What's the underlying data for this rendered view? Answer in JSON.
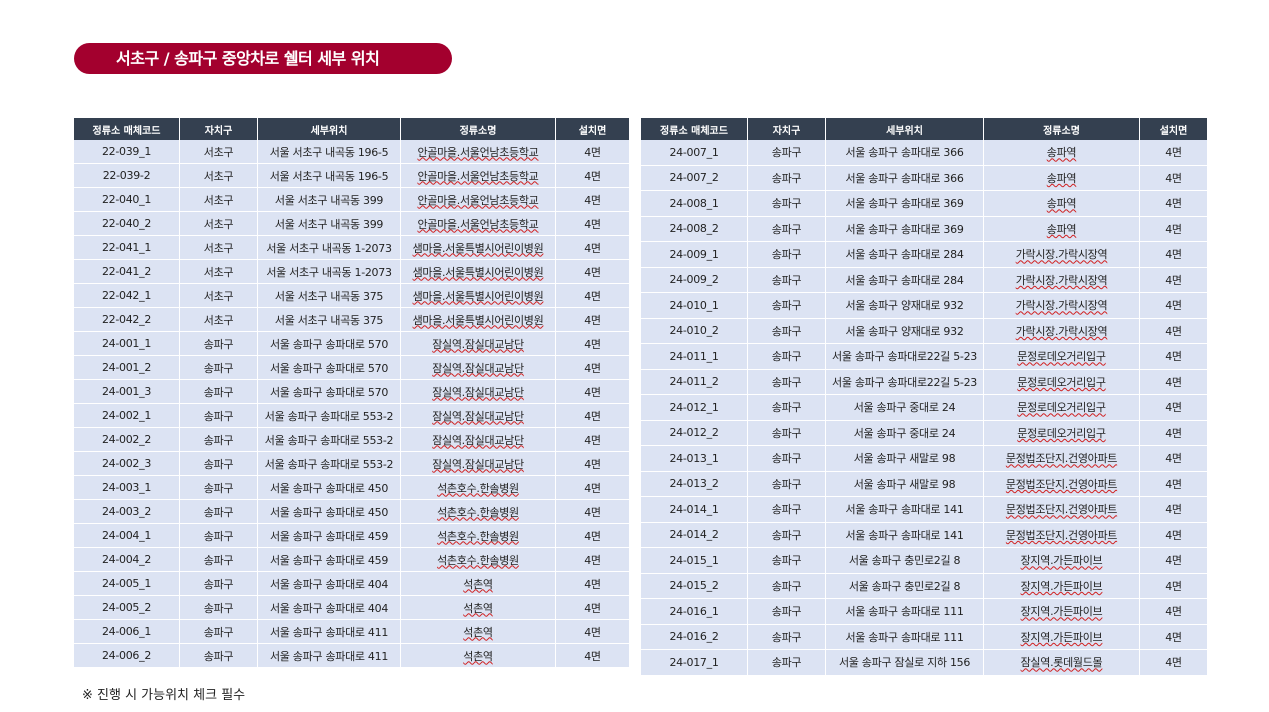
{
  "title": "서초구 / 송파구 중앙차로 쉘터 세부 위치",
  "headers": [
    "정류소 매체코드",
    "자치구",
    "세부위치",
    "정류소명",
    "설치면"
  ],
  "left_rows": [
    [
      "22-039_1",
      "서초구",
      "서울 서초구 내곡동 196-5",
      "안골마을.서울언남초등학교",
      "4면"
    ],
    [
      "22-039-2",
      "서초구",
      "서울 서초구 내곡동 196-5",
      "안골마을.서울언남초등학교",
      "4면"
    ],
    [
      "22-040_1",
      "서초구",
      "서울 서초구 내곡동 399",
      "안골마을.서울언남초등학교",
      "4면"
    ],
    [
      "22-040_2",
      "서초구",
      "서울 서초구 내곡동 399",
      "안골마을.서울언남초등학교",
      "4면"
    ],
    [
      "22-041_1",
      "서초구",
      "서울 서초구 내곡동 1-2073",
      "샘마을.서울특별시어린이병원",
      "4면"
    ],
    [
      "22-041_2",
      "서초구",
      "서울 서초구 내곡동 1-2073",
      "샘마을.서울특별시어린이병원",
      "4면"
    ],
    [
      "22-042_1",
      "서초구",
      "서울 서초구 내곡동 375",
      "샘마을.서울특별시어린이병원",
      "4면"
    ],
    [
      "22-042_2",
      "서초구",
      "서울 서초구 내곡동 375",
      "샘마을.서울특별시어린이병원",
      "4면"
    ],
    [
      "24-001_1",
      "송파구",
      "서울 송파구 송파대로 570",
      "잠실역.잠실대교남단",
      "4면"
    ],
    [
      "24-001_2",
      "송파구",
      "서울 송파구 송파대로 570",
      "잠실역.잠실대교남단",
      "4면"
    ],
    [
      "24-001_3",
      "송파구",
      "서울 송파구 송파대로 570",
      "잠실역.잠실대교남단",
      "4면"
    ],
    [
      "24-002_1",
      "송파구",
      "서울 송파구 송파대로 553-2",
      "잠실역.잠실대교남단",
      "4면"
    ],
    [
      "24-002_2",
      "송파구",
      "서울 송파구 송파대로 553-2",
      "잠실역.잠실대교남단",
      "4면"
    ],
    [
      "24-002_3",
      "송파구",
      "서울 송파구 송파대로 553-2",
      "잠실역.잠실대교남단",
      "4면"
    ],
    [
      "24-003_1",
      "송파구",
      "서울 송파구 송파대로 450",
      "석촌호수.한솔병원",
      "4면"
    ],
    [
      "24-003_2",
      "송파구",
      "서울 송파구 송파대로 450",
      "석촌호수.한솔병원",
      "4면"
    ],
    [
      "24-004_1",
      "송파구",
      "서울 송파구 송파대로 459",
      "석촌호수.한솔병원",
      "4면"
    ],
    [
      "24-004_2",
      "송파구",
      "서울 송파구 송파대로 459",
      "석촌호수.한솔병원",
      "4면"
    ],
    [
      "24-005_1",
      "송파구",
      "서울 송파구 송파대로 404",
      "석촌역",
      "4면"
    ],
    [
      "24-005_2",
      "송파구",
      "서울 송파구 송파대로 404",
      "석촌역",
      "4면"
    ],
    [
      "24-006_1",
      "송파구",
      "서울 송파구 송파대로 411",
      "석촌역",
      "4면"
    ],
    [
      "24-006_2",
      "송파구",
      "서울 송파구 송파대로 411",
      "석촌역",
      "4면"
    ]
  ],
  "right_rows": [
    [
      "24-007_1",
      "송파구",
      "서울 송파구 송파대로 366",
      "송파역",
      "4면"
    ],
    [
      "24-007_2",
      "송파구",
      "서울 송파구 송파대로 366",
      "송파역",
      "4면"
    ],
    [
      "24-008_1",
      "송파구",
      "서울 송파구 송파대로 369",
      "송파역",
      "4면"
    ],
    [
      "24-008_2",
      "송파구",
      "서울 송파구 송파대로 369",
      "송파역",
      "4면"
    ],
    [
      "24-009_1",
      "송파구",
      "서울 송파구 송파대로 284",
      "가락시장.가락시장역",
      "4면"
    ],
    [
      "24-009_2",
      "송파구",
      "서울 송파구 송파대로 284",
      "가락시장.가락시장역",
      "4면"
    ],
    [
      "24-010_1",
      "송파구",
      "서울 송파구 양재대로 932",
      "가락시장.가락시장역",
      "4면"
    ],
    [
      "24-010_2",
      "송파구",
      "서울 송파구 양재대로 932",
      "가락시장.가락시장역",
      "4면"
    ],
    [
      "24-011_1",
      "송파구",
      "서울 송파구 송파대로22길 5-23",
      "문정로데오거리입구",
      "4면"
    ],
    [
      "24-011_2",
      "송파구",
      "서울 송파구 송파대로22길 5-23",
      "문정로데오거리입구",
      "4면"
    ],
    [
      "24-012_1",
      "송파구",
      "서울 송파구 중대로 24",
      "문정로데오거리입구",
      "4면"
    ],
    [
      "24-012_2",
      "송파구",
      "서울 송파구 중대로 24",
      "문정로데오거리입구",
      "4면"
    ],
    [
      "24-013_1",
      "송파구",
      "서울 송파구 새말로 98",
      "문정법조단지.건영아파트",
      "4면"
    ],
    [
      "24-013_2",
      "송파구",
      "서울 송파구 새말로 98",
      "문정법조단지.건영아파트",
      "4면"
    ],
    [
      "24-014_1",
      "송파구",
      "서울 송파구 송파대로 141",
      "문정법조단지.건영아파트",
      "4면"
    ],
    [
      "24-014_2",
      "송파구",
      "서울 송파구 송파대로 141",
      "문정법조단지.건영아파트",
      "4면"
    ],
    [
      "24-015_1",
      "송파구",
      "서울 송파구 충민로2길 8",
      "장지역.가든파이브",
      "4면"
    ],
    [
      "24-015_2",
      "송파구",
      "서울 송파구 충민로2길 8",
      "장지역.가든파이브",
      "4면"
    ],
    [
      "24-016_1",
      "송파구",
      "서울 송파구 송파대로 111",
      "장지역.가든파이브",
      "4면"
    ],
    [
      "24-016_2",
      "송파구",
      "서울 송파구 송파대로 111",
      "장지역.가든파이브",
      "4면"
    ],
    [
      "24-017_1",
      "송파구",
      "서울 송파구 잠실로 지하 156",
      "잠실역.롯데월드몰",
      "4면"
    ]
  ],
  "note": "※ 진행 시 가능위치 체크 필수"
}
